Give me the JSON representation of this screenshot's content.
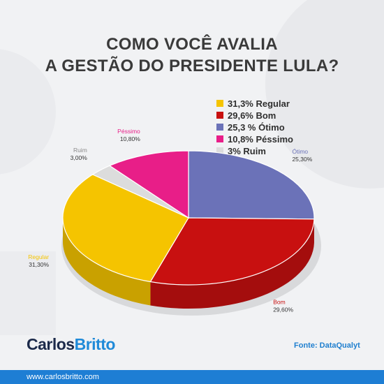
{
  "title": {
    "line1": "COMO VOCÊ AVALIA",
    "line2": "A GESTÃO DO PRESIDENTE LULA?"
  },
  "chart_data": {
    "type": "pie",
    "title": "COMO VOCÊ AVALIA A GESTÃO DO PRESIDENTE LULA?",
    "legend_position": "top-right",
    "slices": [
      {
        "label": "Ótimo",
        "value": 25.3,
        "value_label": "25,30%",
        "color": "#6b72b8"
      },
      {
        "label": "Bom",
        "value": 29.6,
        "value_label": "29,60%",
        "color": "#c81010"
      },
      {
        "label": "Regular",
        "value": 31.3,
        "value_label": "31,30%",
        "color": "#f5c400"
      },
      {
        "label": "Ruim",
        "value": 3.0,
        "value_label": "3,00%",
        "color": "#dcdcdc"
      },
      {
        "label": "Péssimo",
        "value": 10.8,
        "value_label": "10,80%",
        "color": "#e81e88"
      }
    ],
    "legend": [
      {
        "text": "31,3% Regular",
        "color": "#f5c400"
      },
      {
        "text": "29,6% Bom",
        "color": "#c81010"
      },
      {
        "text": "25,3 % Ótimo",
        "color": "#6b72b8"
      },
      {
        "text": "10,8% Péssimo",
        "color": "#e81e88"
      },
      {
        "text": "3% Ruim",
        "color": "#dcdcdc"
      }
    ]
  },
  "brand": {
    "part1": "Carlos",
    "part2": "Britto"
  },
  "source": "Fonte: DataQualyt",
  "footer": {
    "url": "www.carlosbritto.com"
  },
  "colors": {
    "accent": "#1e7ed4",
    "brand_dark": "#1c2a4a"
  }
}
